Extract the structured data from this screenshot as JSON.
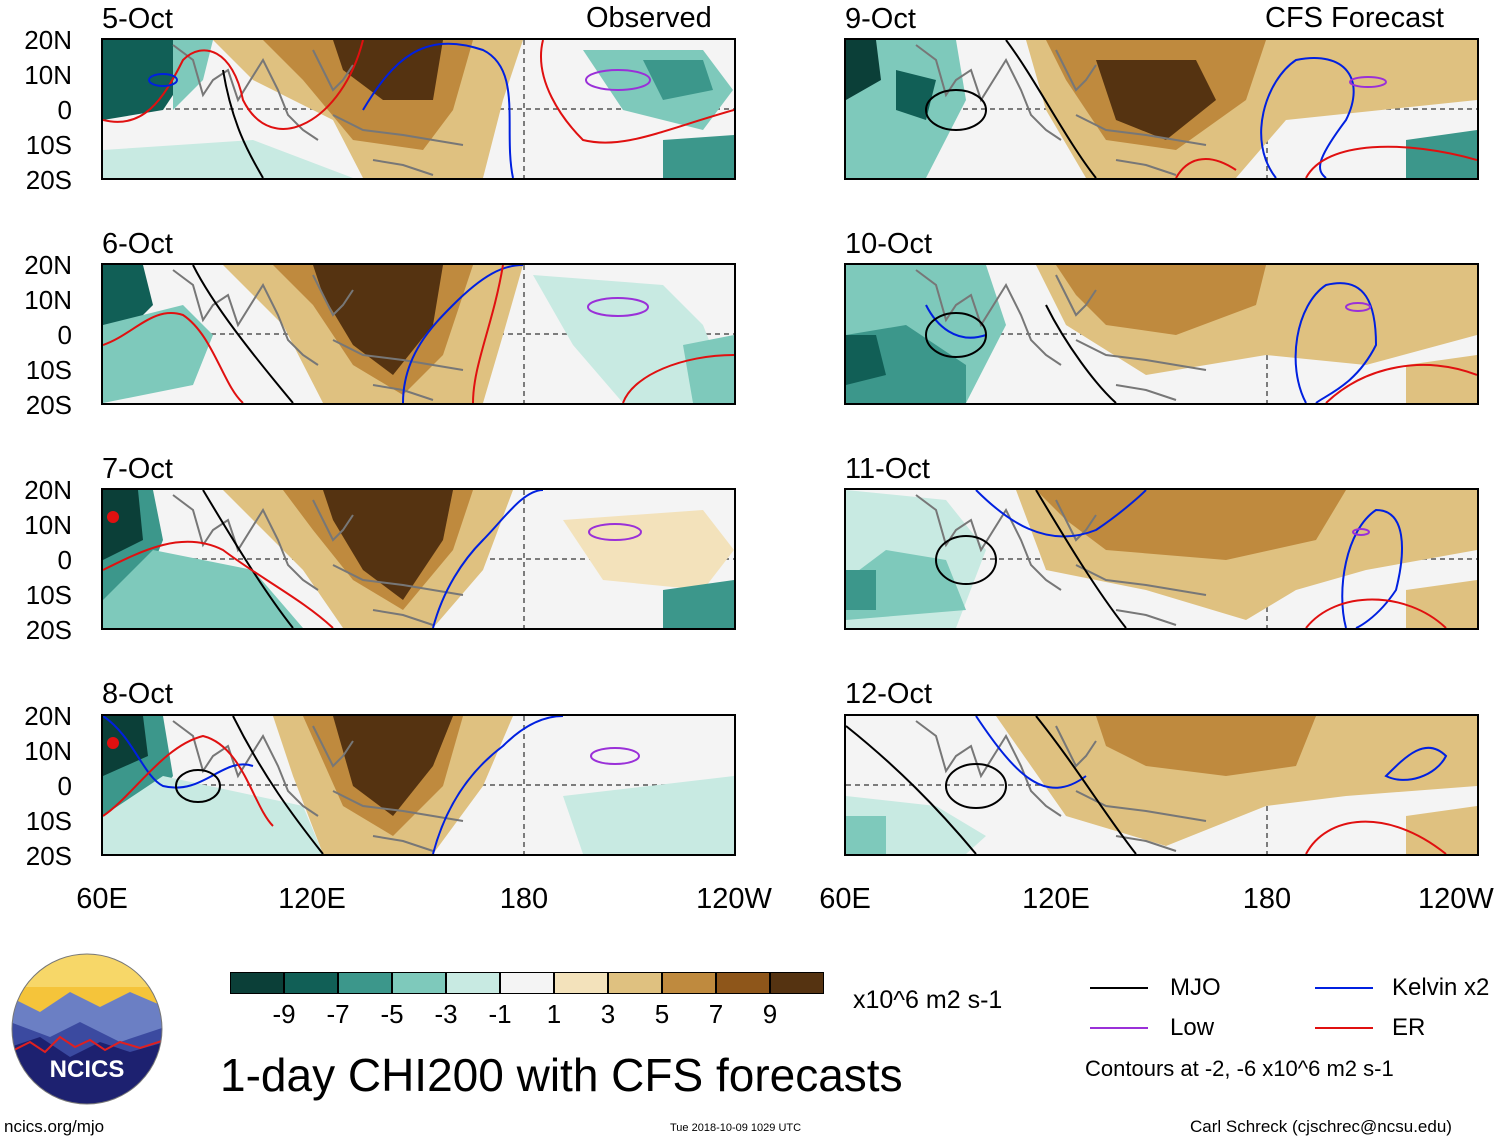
{
  "header": {
    "left_title": "Observed",
    "right_title": "CFS Forecast"
  },
  "panels": {
    "left": [
      "5-Oct",
      "6-Oct",
      "7-Oct",
      "8-Oct"
    ],
    "right": [
      "9-Oct",
      "10-Oct",
      "11-Oct",
      "12-Oct"
    ]
  },
  "lat_labels": [
    "20N",
    "10N",
    "0",
    "10S",
    "20S"
  ],
  "lon_labels": [
    "60E",
    "120E",
    "180",
    "120W"
  ],
  "colorbar": {
    "colors": [
      "#0b3f38",
      "#115f56",
      "#3c978b",
      "#7ec9bb",
      "#c8eae2",
      "#f4f4f4",
      "#f3e2bb",
      "#dfc180",
      "#bf8a3e",
      "#8e561a",
      "#553311"
    ],
    "labels": [
      "-9",
      "-7",
      "-5",
      "-3",
      "-1",
      "1",
      "3",
      "5",
      "7",
      "9"
    ],
    "units": "x10^6 m2 s-1"
  },
  "legend": {
    "items": [
      {
        "label": "MJO",
        "color": "#000000"
      },
      {
        "label": "Kelvin x2",
        "color": "#0020e0"
      },
      {
        "label": "Low",
        "color": "#9a30d8"
      },
      {
        "label": "ER",
        "color": "#e01010"
      }
    ],
    "note": "Contours at -2, -6 x10^6 m2 s-1"
  },
  "main_title": "1-day CHI200 with CFS forecasts",
  "logo_text": "NCICS",
  "footer": {
    "url": "ncics.org/mjo",
    "timestamp": "Tue 2018-10-09 1029 UTC",
    "credit": "Carl Schreck (cjschrec@ncsu.edu)"
  }
}
